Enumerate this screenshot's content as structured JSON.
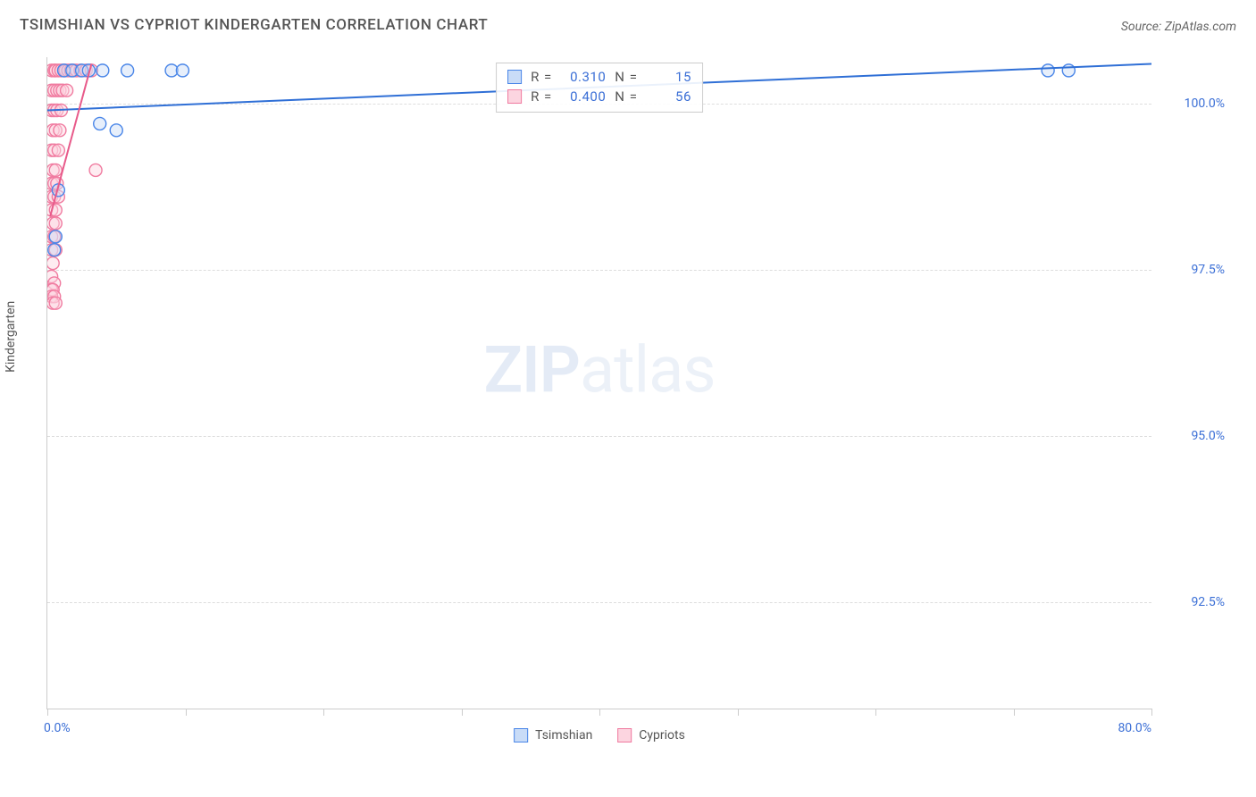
{
  "title": "TSIMSHIAN VS CYPRIOT KINDERGARTEN CORRELATION CHART",
  "source": "Source: ZipAtlas.com",
  "watermark": {
    "zip": "ZIP",
    "atlas": "atlas"
  },
  "chart": {
    "type": "scatter",
    "y_axis_label": "Kindergarten",
    "x_range": [
      0.0,
      80.0
    ],
    "y_range": [
      90.9,
      100.7
    ],
    "x_tick_positions": [
      0,
      10,
      20,
      30,
      40,
      50,
      60,
      70,
      80
    ],
    "x_tick_labels_shown": {
      "0": "0.0%",
      "80": "80.0%"
    },
    "y_grid": [
      {
        "value": 100.0,
        "label": "100.0%"
      },
      {
        "value": 97.5,
        "label": "97.5%"
      },
      {
        "value": 95.0,
        "label": "95.0%"
      },
      {
        "value": 92.5,
        "label": "92.5%"
      }
    ],
    "colors": {
      "series1_fill": "#c9dcf7",
      "series1_stroke": "#4a86e8",
      "series2_fill": "#fcd5e0",
      "series2_stroke": "#f07ba0",
      "grid": "#dddddd",
      "axis": "#cccccc",
      "tick_label": "#3b6fd6",
      "text": "#555555",
      "line1": "#2f6fd6",
      "line2": "#e85a8a"
    },
    "marker_radius": 7,
    "marker_stroke_width": 1.4,
    "marker_fill_opacity": 0.45,
    "line_width": 2,
    "stats": [
      {
        "swatch_fill": "#c9dcf7",
        "swatch_stroke": "#4a86e8",
        "r": "0.310",
        "n": "15"
      },
      {
        "swatch_fill": "#fcd5e0",
        "swatch_stroke": "#f07ba0",
        "r": "0.400",
        "n": "56"
      }
    ],
    "legend": [
      {
        "label": "Tsimshian",
        "fill": "#c9dcf7",
        "stroke": "#4a86e8"
      },
      {
        "label": "Cypriots",
        "fill": "#fcd5e0",
        "stroke": "#f07ba0"
      }
    ],
    "trend_lines": [
      {
        "series": 1,
        "x1": 0,
        "y1": 99.9,
        "x2": 80,
        "y2": 100.6
      },
      {
        "series": 2,
        "x1": 0.2,
        "y1": 98.3,
        "x2": 3.2,
        "y2": 100.6
      }
    ],
    "series1_points": [
      {
        "x": 1.2,
        "y": 100.5
      },
      {
        "x": 1.8,
        "y": 100.5
      },
      {
        "x": 2.5,
        "y": 100.5
      },
      {
        "x": 3.0,
        "y": 100.5
      },
      {
        "x": 4.0,
        "y": 100.5
      },
      {
        "x": 5.8,
        "y": 100.5
      },
      {
        "x": 9.0,
        "y": 100.5
      },
      {
        "x": 9.8,
        "y": 100.5
      },
      {
        "x": 72.5,
        "y": 100.5
      },
      {
        "x": 74.0,
        "y": 100.5
      },
      {
        "x": 3.8,
        "y": 99.7
      },
      {
        "x": 5.0,
        "y": 99.6
      },
      {
        "x": 0.8,
        "y": 98.7
      },
      {
        "x": 0.6,
        "y": 98.0
      },
      {
        "x": 0.5,
        "y": 97.8
      }
    ],
    "series2_points": [
      {
        "x": 0.3,
        "y": 100.5
      },
      {
        "x": 0.5,
        "y": 100.5
      },
      {
        "x": 0.6,
        "y": 100.5
      },
      {
        "x": 0.8,
        "y": 100.5
      },
      {
        "x": 1.0,
        "y": 100.5
      },
      {
        "x": 1.2,
        "y": 100.5
      },
      {
        "x": 1.3,
        "y": 100.5
      },
      {
        "x": 1.5,
        "y": 100.5
      },
      {
        "x": 1.7,
        "y": 100.5
      },
      {
        "x": 1.9,
        "y": 100.5
      },
      {
        "x": 2.1,
        "y": 100.5
      },
      {
        "x": 2.4,
        "y": 100.5
      },
      {
        "x": 2.8,
        "y": 100.5
      },
      {
        "x": 3.2,
        "y": 100.5
      },
      {
        "x": 0.3,
        "y": 100.2
      },
      {
        "x": 0.5,
        "y": 100.2
      },
      {
        "x": 0.7,
        "y": 100.2
      },
      {
        "x": 0.9,
        "y": 100.2
      },
      {
        "x": 1.1,
        "y": 100.2
      },
      {
        "x": 1.4,
        "y": 100.2
      },
      {
        "x": 0.3,
        "y": 99.9
      },
      {
        "x": 0.5,
        "y": 99.9
      },
      {
        "x": 0.7,
        "y": 99.9
      },
      {
        "x": 1.0,
        "y": 99.9
      },
      {
        "x": 0.4,
        "y": 99.6
      },
      {
        "x": 0.6,
        "y": 99.6
      },
      {
        "x": 0.9,
        "y": 99.6
      },
      {
        "x": 0.3,
        "y": 99.3
      },
      {
        "x": 0.5,
        "y": 99.3
      },
      {
        "x": 0.8,
        "y": 99.3
      },
      {
        "x": 0.4,
        "y": 99.0
      },
      {
        "x": 0.6,
        "y": 99.0
      },
      {
        "x": 3.5,
        "y": 99.0
      },
      {
        "x": 0.3,
        "y": 98.8
      },
      {
        "x": 0.5,
        "y": 98.8
      },
      {
        "x": 0.7,
        "y": 98.8
      },
      {
        "x": 0.3,
        "y": 98.6
      },
      {
        "x": 0.5,
        "y": 98.6
      },
      {
        "x": 0.8,
        "y": 98.6
      },
      {
        "x": 0.3,
        "y": 98.4
      },
      {
        "x": 0.6,
        "y": 98.4
      },
      {
        "x": 0.4,
        "y": 98.2
      },
      {
        "x": 0.6,
        "y": 98.2
      },
      {
        "x": 0.3,
        "y": 98.0
      },
      {
        "x": 0.5,
        "y": 98.0
      },
      {
        "x": 0.3,
        "y": 97.8
      },
      {
        "x": 0.6,
        "y": 97.8
      },
      {
        "x": 0.4,
        "y": 97.6
      },
      {
        "x": 0.3,
        "y": 97.4
      },
      {
        "x": 0.5,
        "y": 97.3
      },
      {
        "x": 0.3,
        "y": 97.2
      },
      {
        "x": 0.4,
        "y": 97.2
      },
      {
        "x": 0.3,
        "y": 97.1
      },
      {
        "x": 0.5,
        "y": 97.1
      },
      {
        "x": 0.4,
        "y": 97.0
      },
      {
        "x": 0.6,
        "y": 97.0
      }
    ]
  }
}
